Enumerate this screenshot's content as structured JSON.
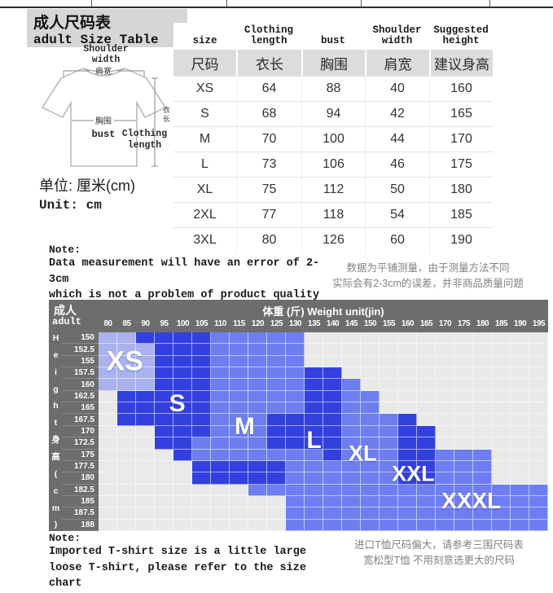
{
  "header": {
    "title_zh": "成人尺码表",
    "title_en": "adult Size Table"
  },
  "diagram": {
    "shoulder_en": "Shoulder\nwidth",
    "shoulder_zh": "肩宽",
    "bust_zh": "胸围",
    "bust_en": "bust",
    "length_zh_chars": [
      "衣",
      "长"
    ],
    "length_en": "Clothing\nlength"
  },
  "unit": {
    "zh": "单位: 厘米(cm)",
    "en": "Unit: cm"
  },
  "size_table": {
    "headers_en": [
      "size",
      "Clothing\nlength",
      "bust",
      "Shoulder\nwidth",
      "Suggested\nheight"
    ],
    "headers_zh": [
      "尺码",
      "衣长",
      "胸围",
      "肩宽",
      "建议身高"
    ],
    "rows": [
      [
        "XS",
        "64",
        "88",
        "40",
        "160"
      ],
      [
        "S",
        "68",
        "94",
        "42",
        "165"
      ],
      [
        "M",
        "70",
        "100",
        "44",
        "170"
      ],
      [
        "L",
        "73",
        "106",
        "46",
        "175"
      ],
      [
        "XL",
        "75",
        "112",
        "50",
        "180"
      ],
      [
        "2XL",
        "77",
        "118",
        "54",
        "185"
      ],
      [
        "3XL",
        "80",
        "126",
        "60",
        "190"
      ]
    ]
  },
  "note_top": {
    "title": "Note:",
    "line1": "Data measurement will have an error of 2-3cm",
    "line2": "which is not a problem of product quality",
    "zh_line1": "数据为平铺测量，由于测量方法不同",
    "zh_line2": "实际会有2-3cm的误差，并非商品质量问题"
  },
  "chart_data": {
    "type": "heatmap",
    "corner_label_zh": "成人",
    "corner_label_en": "adult",
    "title": "体重 (斤)  Weight unit(jin)",
    "x_values_weight_jin": [
      80,
      85,
      90,
      95,
      100,
      105,
      110,
      115,
      120,
      125,
      130,
      135,
      140,
      145,
      150,
      155,
      160,
      165,
      170,
      175,
      180,
      185,
      190,
      195
    ],
    "y_values_height_cm": [
      150,
      152.5,
      155,
      157.5,
      160,
      162.5,
      165,
      167.5,
      170,
      172.5,
      175,
      177.5,
      180,
      182.5,
      185,
      187.5,
      188
    ],
    "y_axis_chars": [
      "H",
      "e",
      "i",
      "g",
      "h",
      "t",
      "身",
      "高",
      "(",
      "c",
      "m",
      ")"
    ],
    "cell_colors": {
      "A": "#a9b2ee",
      "B": "#6e7ef0",
      "C": "#3340e0",
      "G": "#e9e9e9"
    },
    "color_meaning": {
      "A": "XS zone (lightest)",
      "B": "medium size zone",
      "C": "dark size zone",
      "G": "empty"
    },
    "grid": [
      "AACCCCBBBBBGGGGGGGGGGGGG",
      "AAACCCBBBBBGGGGGGGGGGGGG",
      "AAACCCBBBBBGGGGGGGGGGGGG",
      "AAACCCBBBBBCCGGGGGGGGGGG",
      "AAACCCBBBBBCCBGGGGGGGGGG",
      "GCCCCCBBBBBCCBBGGGGGGGGG",
      "GCCCCCBBBBBCCBBGGGGGGGGG",
      "GCCCCCBBBCCCCBBBCGGGGGGG",
      "GGGCCCBBBCCCCBBBCCGGGGGG",
      "GGGCCBBBBCCCCBBBCCGGGGGG",
      "GGGGCBBBBBBBCBBBCCBBBGGG",
      "GGGGGCCCCCBBBBBBCCBBBGGG",
      "GGGGGCCCCCBBBBBBCCBBBGGG",
      "GGGGGGGGBBBBBBBBBBBBBBBB",
      "GGGGGGGGGGBBBBBBBBBBBBBB",
      "GGGGGGGGGGBBBBBBBBBBBBBB",
      "GGGGGGGGGGBBBBBBBBBBBBBB"
    ],
    "size_labels": [
      {
        "text": "XS",
        "col": 0.9,
        "row": 2.0,
        "font": 34
      },
      {
        "text": "S",
        "col": 3.7,
        "row": 5.6,
        "font": 30
      },
      {
        "text": "M",
        "col": 7.3,
        "row": 7.6,
        "font": 30
      },
      {
        "text": "L",
        "col": 11.0,
        "row": 8.8,
        "font": 30
      },
      {
        "text": "XL",
        "col": 13.6,
        "row": 9.9,
        "font": 27
      },
      {
        "text": "XXL",
        "col": 16.3,
        "row": 11.6,
        "font": 27
      },
      {
        "text": "XXXL",
        "col": 19.4,
        "row": 13.9,
        "font": 28
      }
    ]
  },
  "note_bottom": {
    "title": "Note:",
    "line1": "Imported T-shirt size is a little large",
    "line2": "loose T-shirt, please refer to the size chart",
    "zh_line1": "进口T恤尺码偏大，请参考三围尺码表",
    "zh_line2": "宽松型T恤 不用刻意选更大的尺码"
  }
}
